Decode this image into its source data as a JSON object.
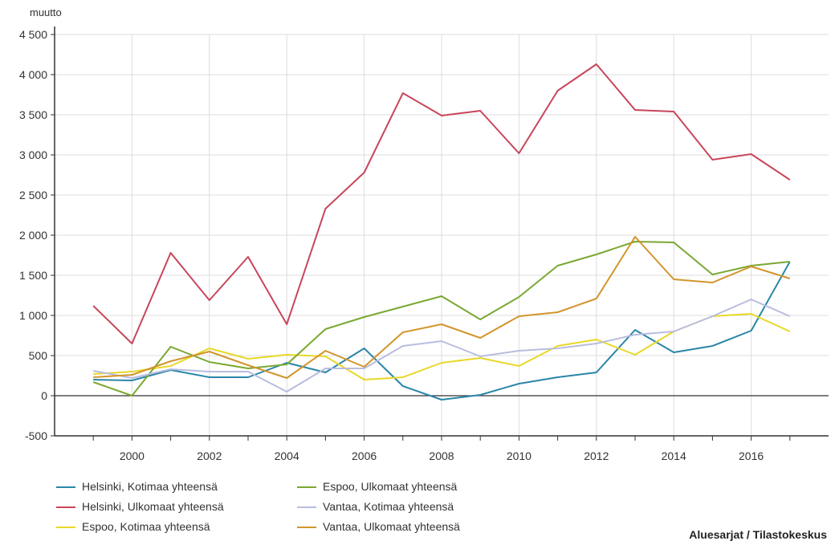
{
  "chart_data": {
    "type": "line",
    "ylabel": "muutto",
    "xlabel": "",
    "title": "",
    "ylim": [
      -500,
      4500
    ],
    "yticks": [
      -500,
      0,
      500,
      1000,
      1500,
      2000,
      2500,
      3000,
      3500,
      4000,
      4500
    ],
    "ytick_labels": [
      "-500",
      "0",
      "500",
      "1 000",
      "1 500",
      "2 000",
      "2 500",
      "3 000",
      "3 500",
      "4 000",
      "4 500"
    ],
    "xticks": [
      2000,
      2002,
      2004,
      2006,
      2008,
      2010,
      2012,
      2014,
      2016
    ],
    "xtick_labels": [
      "2000",
      "2002",
      "2004",
      "2006",
      "2008",
      "2010",
      "2012",
      "2014",
      "2016"
    ],
    "grid": true,
    "legend_position": "bottom",
    "x": [
      1999,
      2000,
      2001,
      2002,
      2003,
      2004,
      2005,
      2006,
      2007,
      2008,
      2009,
      2010,
      2011,
      2012,
      2013,
      2014,
      2015,
      2016,
      2017
    ],
    "series": [
      {
        "name": "Helsinki, Kotimaa yhteensä",
        "color": "#2a86a8",
        "values": [
          200,
          190,
          320,
          230,
          230,
          410,
          290,
          590,
          120,
          -50,
          10,
          150,
          230,
          290,
          820,
          540,
          620,
          810,
          1670
        ]
      },
      {
        "name": "Helsinki, Ulkomaat yhteensä",
        "color": "#c8465a",
        "values": [
          1120,
          650,
          1780,
          1190,
          1730,
          890,
          2330,
          2780,
          3770,
          3490,
          3550,
          3020,
          3800,
          4130,
          3560,
          3540,
          2940,
          3010,
          2690
        ]
      },
      {
        "name": "Espoo, Kotimaa yhteensä",
        "color": "#e8d827",
        "values": [
          270,
          300,
          370,
          590,
          460,
          510,
          490,
          200,
          230,
          410,
          470,
          370,
          620,
          700,
          510,
          800,
          990,
          1020,
          800
        ]
      },
      {
        "name": "Espoo, Ulkomaat yhteensä",
        "color": "#7aa832",
        "values": [
          170,
          0,
          610,
          420,
          340,
          390,
          830,
          980,
          1110,
          1240,
          950,
          1230,
          1620,
          1760,
          1920,
          1910,
          1510,
          1620,
          1670
        ]
      },
      {
        "name": "Vantaa, Kotimaa yhteensä",
        "color": "#b8bde0",
        "values": [
          310,
          220,
          330,
          300,
          300,
          50,
          340,
          340,
          620,
          680,
          490,
          560,
          590,
          650,
          760,
          800,
          990,
          1200,
          990
        ]
      },
      {
        "name": "Vantaa, Ulkomaat yhteensä",
        "color": "#d2952c",
        "values": [
          230,
          260,
          430,
          550,
          380,
          220,
          560,
          360,
          790,
          890,
          720,
          990,
          1040,
          1210,
          1980,
          1450,
          1410,
          1610,
          1460
        ]
      }
    ]
  },
  "legend": [
    {
      "label": "Helsinki, Kotimaa yhteensä",
      "color": "#2a86a8"
    },
    {
      "label": "Espoo, Ulkomaat yhteensä",
      "color": "#7aa832"
    },
    {
      "label": "Helsinki, Ulkomaat yhteensä",
      "color": "#c8465a"
    },
    {
      "label": "Vantaa, Kotimaa yhteensä",
      "color": "#b8bde0"
    },
    {
      "label": "Espoo, Kotimaa yhteensä",
      "color": "#e8d827"
    },
    {
      "label": "Vantaa, Ulkomaat yhteensä",
      "color": "#d2952c"
    }
  ],
  "credit": "Aluesarjat / Tilastokeskus"
}
